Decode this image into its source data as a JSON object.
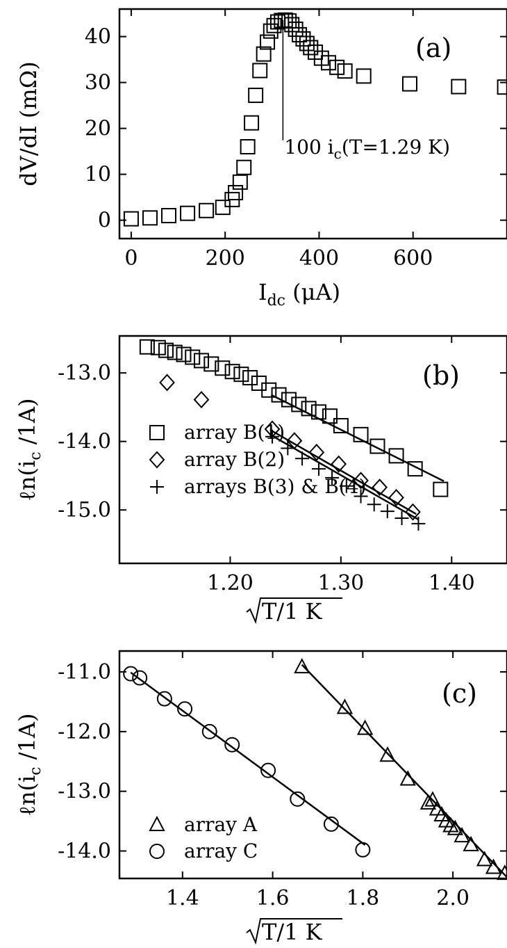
{
  "chart_data": [
    {
      "panel": "(a)",
      "type": "scatter",
      "xlabel_main": "I",
      "xlabel_sub": "dc",
      "xlabel_unit": "(μA)",
      "ylabel": "dV/dI (mΩ)",
      "xlim": [
        -25,
        800
      ],
      "ylim": [
        -4,
        46
      ],
      "xticks": [
        0,
        200,
        400,
        600
      ],
      "xtick_labels": [
        "0",
        "200",
        "400",
        "600"
      ],
      "yticks": [
        0,
        10,
        20,
        30,
        40
      ],
      "ytick_labels": [
        "0",
        "10",
        "20",
        "30",
        "40"
      ],
      "marker": "square",
      "annotation": {
        "main": "100 i",
        "sub": "c",
        "rest": "(T=1.29 K)",
        "x": 323
      },
      "series": [
        {
          "marker": "square",
          "points": [
            [
              0,
              0.3
            ],
            [
              40,
              0.5
            ],
            [
              80,
              1.0
            ],
            [
              120,
              1.5
            ],
            [
              160,
              2.1
            ],
            [
              195,
              2.8
            ],
            [
              215,
              4.5
            ],
            [
              222,
              6.0
            ],
            [
              232,
              8.3
            ],
            [
              240,
              11.5
            ],
            [
              248,
              16
            ],
            [
              256,
              21.2
            ],
            [
              265,
              27.2
            ],
            [
              274,
              32.6
            ],
            [
              282,
              36.2
            ],
            [
              290,
              38.8
            ],
            [
              297,
              41.2
            ],
            [
              304,
              42.4
            ],
            [
              312,
              43.2
            ],
            [
              320,
              43.5
            ],
            [
              328,
              43.6
            ],
            [
              336,
              43.4
            ],
            [
              342,
              42.6
            ],
            [
              350,
              41.6
            ],
            [
              358,
              40.4
            ],
            [
              366,
              39.5
            ],
            [
              374,
              38.5
            ],
            [
              382,
              37.6
            ],
            [
              392,
              36.6
            ],
            [
              405,
              35.3
            ],
            [
              420,
              34.3
            ],
            [
              438,
              33.3
            ],
            [
              455,
              32.5
            ],
            [
              495,
              31.4
            ],
            [
              593,
              29.7
            ],
            [
              697,
              29.1
            ],
            [
              795,
              29.0
            ]
          ]
        }
      ]
    },
    {
      "panel": "(b)",
      "type": "scatter",
      "xlabel_sqrt": "T/1 K",
      "ylabel_main": "ℓn(i",
      "ylabel_sub": "c",
      "ylabel_rest": " /1A)",
      "xlim": [
        1.1,
        1.45
      ],
      "ylim": [
        -15.78,
        -12.46
      ],
      "xticks": [
        1.2,
        1.3,
        1.4
      ],
      "xtick_labels": [
        "1.20",
        "1.30",
        "1.40"
      ],
      "yticks": [
        -13.0,
        -14.0,
        -15.0
      ],
      "ytick_labels": [
        "-13.0",
        "-14.0",
        "-15.0"
      ],
      "series": [
        {
          "name": "array B(1)",
          "marker": "square",
          "points": [
            [
              1.125,
              -12.62
            ],
            [
              1.135,
              -12.63
            ],
            [
              1.142,
              -12.67
            ],
            [
              1.15,
              -12.7
            ],
            [
              1.158,
              -12.73
            ],
            [
              1.166,
              -12.77
            ],
            [
              1.174,
              -12.82
            ],
            [
              1.183,
              -12.87
            ],
            [
              1.193,
              -12.93
            ],
            [
              1.202,
              -12.98
            ],
            [
              1.21,
              -13.02
            ],
            [
              1.218,
              -13.07
            ],
            [
              1.226,
              -13.15
            ],
            [
              1.235,
              -13.25
            ],
            [
              1.244,
              -13.32
            ],
            [
              1.253,
              -13.39
            ],
            [
              1.262,
              -13.46
            ],
            [
              1.271,
              -13.52
            ],
            [
              1.28,
              -13.57
            ],
            [
              1.29,
              -13.63
            ],
            [
              1.3,
              -13.77
            ],
            [
              1.318,
              -13.9
            ],
            [
              1.333,
              -14.07
            ],
            [
              1.35,
              -14.21
            ],
            [
              1.367,
              -14.4
            ],
            [
              1.39,
              -14.7
            ]
          ],
          "fit": [
            [
              1.237,
              -13.32
            ],
            [
              1.393,
              -14.58
            ]
          ]
        },
        {
          "name": "array B(2)",
          "marker": "diamond",
          "points": [
            [
              1.143,
              -13.14
            ],
            [
              1.174,
              -13.39
            ],
            [
              1.238,
              -13.82
            ],
            [
              1.258,
              -13.99
            ],
            [
              1.278,
              -14.16
            ],
            [
              1.298,
              -14.33
            ],
            [
              1.318,
              -14.57
            ],
            [
              1.335,
              -14.67
            ],
            [
              1.35,
              -14.82
            ],
            [
              1.365,
              -15.03
            ]
          ],
          "fit": [
            [
              1.236,
              -13.83
            ],
            [
              1.368,
              -15.06
            ]
          ]
        },
        {
          "name": "arrays B(3) & B(4)",
          "marker": "plus",
          "points": [
            [
              1.238,
              -13.93
            ],
            [
              1.252,
              -14.1
            ],
            [
              1.265,
              -14.25
            ],
            [
              1.28,
              -14.4
            ],
            [
              1.292,
              -14.53
            ],
            [
              1.305,
              -14.65
            ],
            [
              1.318,
              -14.8
            ],
            [
              1.33,
              -14.92
            ],
            [
              1.342,
              -15.02
            ],
            [
              1.355,
              -15.12
            ],
            [
              1.37,
              -15.2
            ]
          ],
          "fit": [
            [
              1.236,
              -13.9
            ],
            [
              1.37,
              -15.14
            ]
          ]
        }
      ]
    },
    {
      "panel": "(c)",
      "type": "scatter",
      "xlabel_sqrt": "T/1 K",
      "ylabel_main": "ℓn(i",
      "ylabel_sub": "c",
      "ylabel_rest": " /1A)",
      "xlim": [
        1.26,
        2.12
      ],
      "ylim": [
        -14.46,
        -10.65
      ],
      "xticks": [
        1.4,
        1.6,
        1.8,
        2.0
      ],
      "xtick_labels": [
        "1.4",
        "1.6",
        "1.8",
        "2.0"
      ],
      "yticks": [
        -11.0,
        -12.0,
        -13.0,
        -14.0
      ],
      "ytick_labels": [
        "-11.0",
        "-12.0",
        "-13.0",
        "-14.0"
      ],
      "series": [
        {
          "name": "array A",
          "marker": "triangle",
          "points": [
            [
              1.665,
              -10.92
            ],
            [
              1.76,
              -11.6
            ],
            [
              1.805,
              -11.95
            ],
            [
              1.855,
              -12.4
            ],
            [
              1.9,
              -12.8
            ],
            [
              1.945,
              -13.2
            ],
            [
              1.955,
              -13.15
            ],
            [
              1.965,
              -13.3
            ],
            [
              1.975,
              -13.4
            ],
            [
              1.985,
              -13.5
            ],
            [
              1.995,
              -13.58
            ],
            [
              2.005,
              -13.63
            ],
            [
              2.02,
              -13.75
            ],
            [
              2.04,
              -13.9
            ],
            [
              2.07,
              -14.15
            ],
            [
              2.09,
              -14.28
            ],
            [
              2.115,
              -14.38
            ]
          ],
          "fit": [
            [
              1.665,
              -10.88
            ],
            [
              2.12,
              -14.44
            ]
          ]
        },
        {
          "name": "array C",
          "marker": "circle",
          "points": [
            [
              1.285,
              -11.03
            ],
            [
              1.305,
              -11.1
            ],
            [
              1.36,
              -11.45
            ],
            [
              1.405,
              -11.62
            ],
            [
              1.46,
              -12.0
            ],
            [
              1.51,
              -12.22
            ],
            [
              1.59,
              -12.65
            ],
            [
              1.655,
              -13.13
            ],
            [
              1.73,
              -13.55
            ],
            [
              1.8,
              -13.98
            ]
          ],
          "fit": [
            [
              1.285,
              -11.01
            ],
            [
              1.805,
              -13.9
            ]
          ]
        }
      ]
    }
  ]
}
